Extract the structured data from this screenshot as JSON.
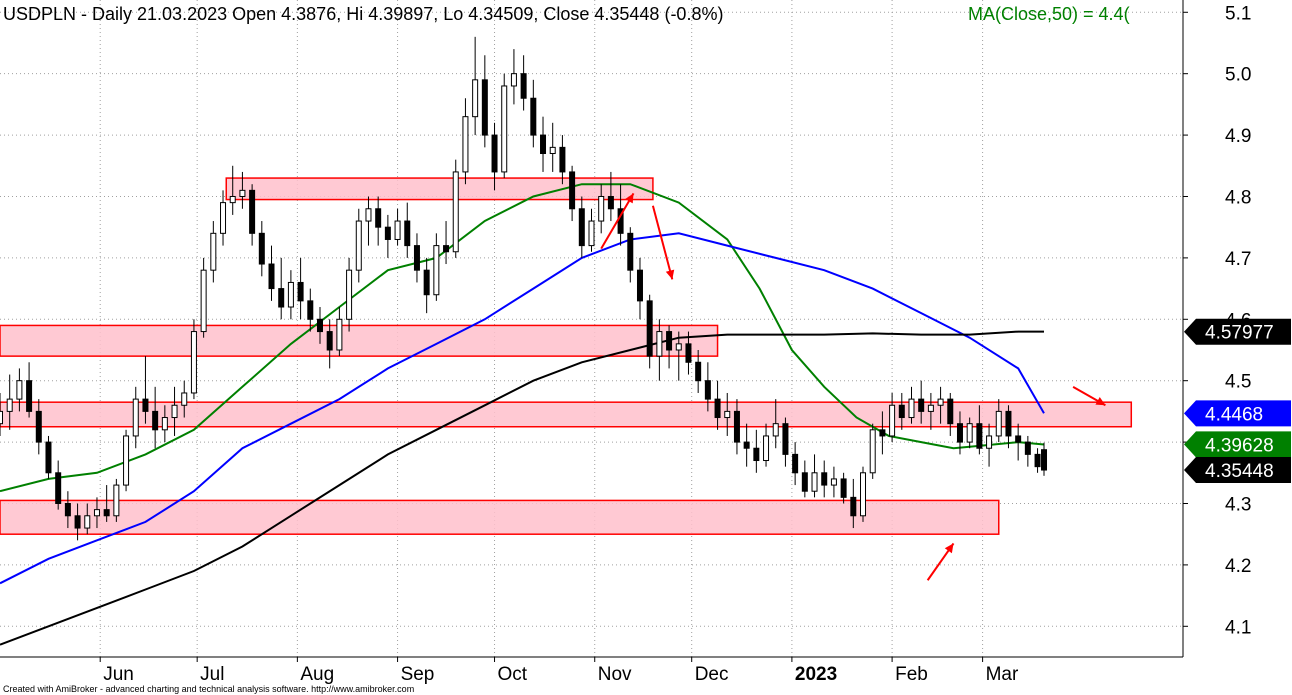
{
  "chart_data": {
    "type": "line",
    "title": "USDPLN - Daily 21.03.2023 Open 4.3876, Hi 4.39897, Lo 4.34509, Close 4.35448 (-0.8%)",
    "ma_text": "MA(Close,50) = 4.4(",
    "ylim": [
      4.05,
      5.12
    ],
    "y_ticks": [
      "5.1",
      "5.0",
      "4.9",
      "4.8",
      "4.7",
      "4.6",
      "4.5",
      "4.4",
      "4.3",
      "4.2",
      "4.1"
    ],
    "x_labels": [
      "Jun",
      "Jul",
      "Aug",
      "Sep",
      "Oct",
      "Nov",
      "Dec",
      "2023",
      "Feb",
      "Mar"
    ],
    "x_label_days": [
      31,
      61,
      92,
      123,
      153,
      184,
      214,
      245,
      276,
      304
    ],
    "x_range_days": [
      0,
      366
    ],
    "grid": true,
    "zones": [
      {
        "x0_day": 70,
        "x1_day": 202,
        "y_low": 4.795,
        "y_high": 4.83
      },
      {
        "x0_day": 0,
        "x1_day": 222,
        "y_low": 4.54,
        "y_high": 4.59
      },
      {
        "x0_day": 0,
        "x1_day": 350,
        "y_low": 4.425,
        "y_high": 4.465
      },
      {
        "x0_day": 0,
        "x1_day": 309,
        "y_low": 4.25,
        "y_high": 4.305
      }
    ],
    "arrows": [
      {
        "from": [
          186,
          4.715
        ],
        "to": [
          196,
          4.805
        ]
      },
      {
        "from": [
          202,
          4.785
        ],
        "to": [
          208,
          4.665
        ]
      },
      {
        "from": [
          332,
          4.49
        ],
        "to": [
          342,
          4.46
        ]
      },
      {
        "from": [
          287,
          4.175
        ],
        "to": [
          295,
          4.235
        ]
      }
    ],
    "candles": [
      {
        "x": 0,
        "o": 4.43,
        "h": 4.48,
        "l": 4.41,
        "c": 4.45
      },
      {
        "x": 3,
        "o": 4.45,
        "h": 4.51,
        "l": 4.42,
        "c": 4.47
      },
      {
        "x": 6,
        "o": 4.47,
        "h": 4.52,
        "l": 4.45,
        "c": 4.5
      },
      {
        "x": 9,
        "o": 4.5,
        "h": 4.53,
        "l": 4.44,
        "c": 4.45
      },
      {
        "x": 12,
        "o": 4.45,
        "h": 4.47,
        "l": 4.38,
        "c": 4.4
      },
      {
        "x": 15,
        "o": 4.4,
        "h": 4.41,
        "l": 4.34,
        "c": 4.35
      },
      {
        "x": 18,
        "o": 4.35,
        "h": 4.37,
        "l": 4.29,
        "c": 4.3
      },
      {
        "x": 21,
        "o": 4.3,
        "h": 4.32,
        "l": 4.26,
        "c": 4.28
      },
      {
        "x": 24,
        "o": 4.28,
        "h": 4.3,
        "l": 4.24,
        "c": 4.26
      },
      {
        "x": 27,
        "o": 4.26,
        "h": 4.3,
        "l": 4.25,
        "c": 4.28
      },
      {
        "x": 30,
        "o": 4.28,
        "h": 4.31,
        "l": 4.26,
        "c": 4.29
      },
      {
        "x": 33,
        "o": 4.29,
        "h": 4.33,
        "l": 4.27,
        "c": 4.28
      },
      {
        "x": 36,
        "o": 4.28,
        "h": 4.34,
        "l": 4.27,
        "c": 4.33
      },
      {
        "x": 39,
        "o": 4.33,
        "h": 4.42,
        "l": 4.32,
        "c": 4.41
      },
      {
        "x": 42,
        "o": 4.41,
        "h": 4.49,
        "l": 4.39,
        "c": 4.47
      },
      {
        "x": 45,
        "o": 4.47,
        "h": 4.54,
        "l": 4.43,
        "c": 4.45
      },
      {
        "x": 48,
        "o": 4.45,
        "h": 4.49,
        "l": 4.39,
        "c": 4.42
      },
      {
        "x": 51,
        "o": 4.42,
        "h": 4.46,
        "l": 4.4,
        "c": 4.44
      },
      {
        "x": 54,
        "o": 4.44,
        "h": 4.49,
        "l": 4.41,
        "c": 4.46
      },
      {
        "x": 57,
        "o": 4.46,
        "h": 4.5,
        "l": 4.44,
        "c": 4.48
      },
      {
        "x": 60,
        "o": 4.48,
        "h": 4.6,
        "l": 4.47,
        "c": 4.58
      },
      {
        "x": 63,
        "o": 4.58,
        "h": 4.7,
        "l": 4.57,
        "c": 4.68
      },
      {
        "x": 66,
        "o": 4.68,
        "h": 4.76,
        "l": 4.66,
        "c": 4.74
      },
      {
        "x": 69,
        "o": 4.74,
        "h": 4.81,
        "l": 4.72,
        "c": 4.79
      },
      {
        "x": 72,
        "o": 4.79,
        "h": 4.85,
        "l": 4.77,
        "c": 4.8
      },
      {
        "x": 75,
        "o": 4.8,
        "h": 4.84,
        "l": 4.78,
        "c": 4.81
      },
      {
        "x": 78,
        "o": 4.81,
        "h": 4.82,
        "l": 4.72,
        "c": 4.74
      },
      {
        "x": 81,
        "o": 4.74,
        "h": 4.76,
        "l": 4.67,
        "c": 4.69
      },
      {
        "x": 84,
        "o": 4.69,
        "h": 4.72,
        "l": 4.63,
        "c": 4.65
      },
      {
        "x": 87,
        "o": 4.65,
        "h": 4.7,
        "l": 4.6,
        "c": 4.62
      },
      {
        "x": 90,
        "o": 4.62,
        "h": 4.68,
        "l": 4.6,
        "c": 4.66
      },
      {
        "x": 93,
        "o": 4.66,
        "h": 4.7,
        "l": 4.6,
        "c": 4.63
      },
      {
        "x": 96,
        "o": 4.63,
        "h": 4.65,
        "l": 4.58,
        "c": 4.6
      },
      {
        "x": 99,
        "o": 4.6,
        "h": 4.62,
        "l": 4.56,
        "c": 4.58
      },
      {
        "x": 102,
        "o": 4.58,
        "h": 4.6,
        "l": 4.52,
        "c": 4.55
      },
      {
        "x": 105,
        "o": 4.55,
        "h": 4.62,
        "l": 4.54,
        "c": 4.6
      },
      {
        "x": 108,
        "o": 4.6,
        "h": 4.7,
        "l": 4.58,
        "c": 4.68
      },
      {
        "x": 111,
        "o": 4.68,
        "h": 4.78,
        "l": 4.66,
        "c": 4.76
      },
      {
        "x": 114,
        "o": 4.76,
        "h": 4.8,
        "l": 4.72,
        "c": 4.78
      },
      {
        "x": 117,
        "o": 4.78,
        "h": 4.8,
        "l": 4.72,
        "c": 4.75
      },
      {
        "x": 120,
        "o": 4.75,
        "h": 4.77,
        "l": 4.7,
        "c": 4.73
      },
      {
        "x": 123,
        "o": 4.73,
        "h": 4.78,
        "l": 4.72,
        "c": 4.76
      },
      {
        "x": 126,
        "o": 4.76,
        "h": 4.79,
        "l": 4.7,
        "c": 4.72
      },
      {
        "x": 129,
        "o": 4.72,
        "h": 4.74,
        "l": 4.66,
        "c": 4.68
      },
      {
        "x": 132,
        "o": 4.68,
        "h": 4.7,
        "l": 4.61,
        "c": 4.64
      },
      {
        "x": 135,
        "o": 4.64,
        "h": 4.74,
        "l": 4.63,
        "c": 4.72
      },
      {
        "x": 138,
        "o": 4.72,
        "h": 4.76,
        "l": 4.69,
        "c": 4.71
      },
      {
        "x": 141,
        "o": 4.71,
        "h": 4.86,
        "l": 4.7,
        "c": 4.84
      },
      {
        "x": 144,
        "o": 4.84,
        "h": 4.96,
        "l": 4.82,
        "c": 4.93
      },
      {
        "x": 147,
        "o": 4.93,
        "h": 5.06,
        "l": 4.9,
        "c": 4.99
      },
      {
        "x": 150,
        "o": 4.99,
        "h": 5.03,
        "l": 4.88,
        "c": 4.9
      },
      {
        "x": 153,
        "o": 4.9,
        "h": 4.92,
        "l": 4.81,
        "c": 4.84
      },
      {
        "x": 156,
        "o": 4.84,
        "h": 5.0,
        "l": 4.83,
        "c": 4.98
      },
      {
        "x": 159,
        "o": 4.98,
        "h": 5.04,
        "l": 4.95,
        "c": 5.0
      },
      {
        "x": 162,
        "o": 5.0,
        "h": 5.03,
        "l": 4.94,
        "c": 4.96
      },
      {
        "x": 165,
        "o": 4.96,
        "h": 4.99,
        "l": 4.88,
        "c": 4.9
      },
      {
        "x": 168,
        "o": 4.9,
        "h": 4.93,
        "l": 4.84,
        "c": 4.87
      },
      {
        "x": 171,
        "o": 4.87,
        "h": 4.92,
        "l": 4.84,
        "c": 4.88
      },
      {
        "x": 174,
        "o": 4.88,
        "h": 4.9,
        "l": 4.82,
        "c": 4.84
      },
      {
        "x": 177,
        "o": 4.84,
        "h": 4.85,
        "l": 4.76,
        "c": 4.78
      },
      {
        "x": 180,
        "o": 4.78,
        "h": 4.8,
        "l": 4.7,
        "c": 4.72
      },
      {
        "x": 183,
        "o": 4.72,
        "h": 4.78,
        "l": 4.71,
        "c": 4.76
      },
      {
        "x": 186,
        "o": 4.76,
        "h": 4.82,
        "l": 4.74,
        "c": 4.8
      },
      {
        "x": 189,
        "o": 4.8,
        "h": 4.84,
        "l": 4.76,
        "c": 4.78
      },
      {
        "x": 192,
        "o": 4.78,
        "h": 4.82,
        "l": 4.72,
        "c": 4.74
      },
      {
        "x": 195,
        "o": 4.74,
        "h": 4.75,
        "l": 4.66,
        "c": 4.68
      },
      {
        "x": 198,
        "o": 4.68,
        "h": 4.7,
        "l": 4.6,
        "c": 4.63
      },
      {
        "x": 201,
        "o": 4.63,
        "h": 4.64,
        "l": 4.52,
        "c": 4.54
      },
      {
        "x": 204,
        "o": 4.54,
        "h": 4.6,
        "l": 4.5,
        "c": 4.58
      },
      {
        "x": 207,
        "o": 4.58,
        "h": 4.59,
        "l": 4.52,
        "c": 4.55
      },
      {
        "x": 210,
        "o": 4.55,
        "h": 4.58,
        "l": 4.5,
        "c": 4.56
      },
      {
        "x": 213,
        "o": 4.56,
        "h": 4.58,
        "l": 4.51,
        "c": 4.53
      },
      {
        "x": 216,
        "o": 4.53,
        "h": 4.55,
        "l": 4.48,
        "c": 4.5
      },
      {
        "x": 219,
        "o": 4.5,
        "h": 4.53,
        "l": 4.45,
        "c": 4.47
      },
      {
        "x": 222,
        "o": 4.47,
        "h": 4.5,
        "l": 4.42,
        "c": 4.44
      },
      {
        "x": 225,
        "o": 4.44,
        "h": 4.48,
        "l": 4.41,
        "c": 4.45
      },
      {
        "x": 228,
        "o": 4.45,
        "h": 4.47,
        "l": 4.38,
        "c": 4.4
      },
      {
        "x": 231,
        "o": 4.4,
        "h": 4.43,
        "l": 4.36,
        "c": 4.39
      },
      {
        "x": 234,
        "o": 4.39,
        "h": 4.42,
        "l": 4.35,
        "c": 4.37
      },
      {
        "x": 237,
        "o": 4.37,
        "h": 4.43,
        "l": 4.36,
        "c": 4.41
      },
      {
        "x": 240,
        "o": 4.41,
        "h": 4.47,
        "l": 4.39,
        "c": 4.43
      },
      {
        "x": 243,
        "o": 4.43,
        "h": 4.44,
        "l": 4.36,
        "c": 4.38
      },
      {
        "x": 246,
        "o": 4.38,
        "h": 4.4,
        "l": 4.33,
        "c": 4.35
      },
      {
        "x": 249,
        "o": 4.35,
        "h": 4.37,
        "l": 4.31,
        "c": 4.32
      },
      {
        "x": 252,
        "o": 4.32,
        "h": 4.38,
        "l": 4.31,
        "c": 4.35
      },
      {
        "x": 255,
        "o": 4.35,
        "h": 4.37,
        "l": 4.31,
        "c": 4.33
      },
      {
        "x": 258,
        "o": 4.33,
        "h": 4.36,
        "l": 4.31,
        "c": 4.34
      },
      {
        "x": 261,
        "o": 4.34,
        "h": 4.35,
        "l": 4.3,
        "c": 4.31
      },
      {
        "x": 264,
        "o": 4.31,
        "h": 4.34,
        "l": 4.26,
        "c": 4.28
      },
      {
        "x": 267,
        "o": 4.28,
        "h": 4.36,
        "l": 4.27,
        "c": 4.35
      },
      {
        "x": 270,
        "o": 4.35,
        "h": 4.43,
        "l": 4.34,
        "c": 4.42
      },
      {
        "x": 273,
        "o": 4.42,
        "h": 4.45,
        "l": 4.38,
        "c": 4.41
      },
      {
        "x": 276,
        "o": 4.41,
        "h": 4.48,
        "l": 4.4,
        "c": 4.46
      },
      {
        "x": 279,
        "o": 4.46,
        "h": 4.48,
        "l": 4.42,
        "c": 4.44
      },
      {
        "x": 282,
        "o": 4.44,
        "h": 4.49,
        "l": 4.43,
        "c": 4.47
      },
      {
        "x": 285,
        "o": 4.47,
        "h": 4.5,
        "l": 4.43,
        "c": 4.45
      },
      {
        "x": 288,
        "o": 4.45,
        "h": 4.48,
        "l": 4.42,
        "c": 4.46
      },
      {
        "x": 291,
        "o": 4.46,
        "h": 4.49,
        "l": 4.43,
        "c": 4.47
      },
      {
        "x": 294,
        "o": 4.47,
        "h": 4.48,
        "l": 4.41,
        "c": 4.43
      },
      {
        "x": 297,
        "o": 4.43,
        "h": 4.45,
        "l": 4.38,
        "c": 4.4
      },
      {
        "x": 300,
        "o": 4.4,
        "h": 4.44,
        "l": 4.39,
        "c": 4.43
      },
      {
        "x": 303,
        "o": 4.43,
        "h": 4.46,
        "l": 4.38,
        "c": 4.39
      },
      {
        "x": 306,
        "o": 4.39,
        "h": 4.43,
        "l": 4.36,
        "c": 4.41
      },
      {
        "x": 309,
        "o": 4.41,
        "h": 4.47,
        "l": 4.4,
        "c": 4.45
      },
      {
        "x": 312,
        "o": 4.45,
        "h": 4.46,
        "l": 4.39,
        "c": 4.41
      },
      {
        "x": 315,
        "o": 4.41,
        "h": 4.43,
        "l": 4.37,
        "c": 4.4
      },
      {
        "x": 318,
        "o": 4.4,
        "h": 4.41,
        "l": 4.36,
        "c": 4.38
      },
      {
        "x": 321,
        "o": 4.38,
        "h": 4.39,
        "l": 4.35,
        "c": 4.36
      },
      {
        "x": 323,
        "o": 4.3876,
        "h": 4.39897,
        "l": 4.34509,
        "c": 4.35448
      }
    ],
    "series": [
      {
        "name": "MA(Close,50)",
        "color": "#008000",
        "last": "4.39628",
        "points": [
          [
            0,
            4.32
          ],
          [
            15,
            4.34
          ],
          [
            30,
            4.35
          ],
          [
            45,
            4.38
          ],
          [
            60,
            4.42
          ],
          [
            75,
            4.49
          ],
          [
            90,
            4.56
          ],
          [
            105,
            4.62
          ],
          [
            120,
            4.68
          ],
          [
            135,
            4.7
          ],
          [
            150,
            4.76
          ],
          [
            165,
            4.8
          ],
          [
            180,
            4.82
          ],
          [
            195,
            4.82
          ],
          [
            210,
            4.79
          ],
          [
            225,
            4.73
          ],
          [
            235,
            4.65
          ],
          [
            245,
            4.55
          ],
          [
            255,
            4.49
          ],
          [
            265,
            4.44
          ],
          [
            275,
            4.41
          ],
          [
            285,
            4.4
          ],
          [
            295,
            4.39
          ],
          [
            305,
            4.395
          ],
          [
            315,
            4.4
          ],
          [
            323,
            4.396
          ]
        ]
      },
      {
        "name": "",
        "color": "#0000ff",
        "last": "4.4468",
        "points": [
          [
            0,
            4.17
          ],
          [
            15,
            4.21
          ],
          [
            30,
            4.24
          ],
          [
            45,
            4.27
          ],
          [
            60,
            4.32
          ],
          [
            75,
            4.39
          ],
          [
            90,
            4.43
          ],
          [
            105,
            4.47
          ],
          [
            120,
            4.52
          ],
          [
            135,
            4.56
          ],
          [
            150,
            4.6
          ],
          [
            165,
            4.65
          ],
          [
            180,
            4.7
          ],
          [
            195,
            4.73
          ],
          [
            210,
            4.74
          ],
          [
            225,
            4.72
          ],
          [
            240,
            4.7
          ],
          [
            255,
            4.68
          ],
          [
            270,
            4.65
          ],
          [
            285,
            4.61
          ],
          [
            300,
            4.57
          ],
          [
            315,
            4.52
          ],
          [
            323,
            4.447
          ]
        ]
      },
      {
        "name": "",
        "color": "#000000",
        "last": "4.57977",
        "points": [
          [
            0,
            4.07
          ],
          [
            15,
            4.1
          ],
          [
            30,
            4.13
          ],
          [
            45,
            4.16
          ],
          [
            60,
            4.19
          ],
          [
            75,
            4.23
          ],
          [
            90,
            4.28
          ],
          [
            105,
            4.33
          ],
          [
            120,
            4.38
          ],
          [
            135,
            4.42
          ],
          [
            150,
            4.46
          ],
          [
            165,
            4.5
          ],
          [
            180,
            4.53
          ],
          [
            195,
            4.55
          ],
          [
            210,
            4.57
          ],
          [
            225,
            4.575
          ],
          [
            240,
            4.575
          ],
          [
            255,
            4.575
          ],
          [
            270,
            4.577
          ],
          [
            285,
            4.575
          ],
          [
            300,
            4.575
          ],
          [
            315,
            4.58
          ],
          [
            323,
            4.58
          ]
        ]
      }
    ],
    "last_close_label": "4.35448"
  },
  "footer": {
    "credit": "Created with AmiBroker - advanced charting and technical analysis software. http://www.amibroker.com"
  },
  "colors": {
    "up": "#ffffff",
    "down": "#000000",
    "zone_fill": "#ffc0cb",
    "zone_stroke": "#ff0000",
    "arrow": "#ff0000",
    "grid": "#a0a0a0"
  }
}
